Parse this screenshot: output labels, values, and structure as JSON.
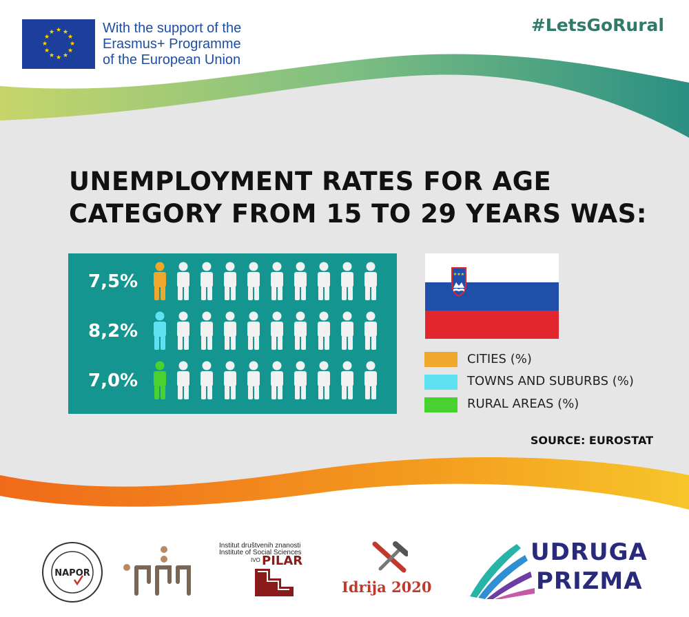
{
  "header": {
    "eu_support_lines": [
      "With the support of the",
      "Erasmus+ Programme",
      "of the European Union"
    ],
    "hashtag": "#LetsGoRural"
  },
  "title_lines": [
    "UNEMPLOYMENT  RATES FOR AGE",
    "CATEGORY FROM 15 TO 29 YEARS WAS:"
  ],
  "chart_data": {
    "type": "pictogram",
    "categories": [
      "CITIES (%)",
      "TOWNS AND SUBURBS (%)",
      "RURAL AREAS (%)"
    ],
    "values": [
      7.5,
      8.2,
      7.0
    ],
    "value_labels": [
      "7,5%",
      "8,2%",
      "7,0%"
    ],
    "icons_per_row": 10,
    "highlighted_icons_per_row": 1,
    "colors": [
      "#f0a82c",
      "#5fe1f2",
      "#49d12f"
    ]
  },
  "legend": [
    {
      "label": "CITIES (%)",
      "color": "#f0a82c"
    },
    {
      "label": "TOWNS AND SUBURBS (%)",
      "color": "#5fe1f2"
    },
    {
      "label": "RURAL AREAS (%)",
      "color": "#49d12f"
    }
  ],
  "source": "SOURCE: EUROSTAT",
  "footer_logos": {
    "napor": "NAPOR",
    "ivo_pilar_lines": [
      "Institut društvenih znanosti",
      "Institute of Social Sciences",
      "IVO",
      "PILAR"
    ],
    "idrija": "Idrija 2020",
    "prizma_lines": [
      "UDRUGA",
      "PRIZMA"
    ]
  },
  "colors": {
    "panel": "#149590",
    "background_gray": "#e6e6e6",
    "eu_blue": "#1b3f9a",
    "hashtag": "#2f7a6a",
    "slovenia_white": "#ffffff",
    "slovenia_blue": "#1f4fa8",
    "slovenia_red": "#e2262e"
  }
}
